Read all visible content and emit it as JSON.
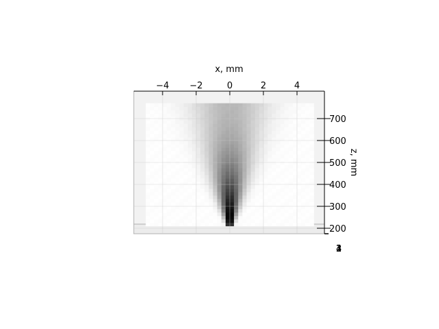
{
  "chart_data": {
    "type": "heatmap",
    "title": "",
    "xlabel": "x, mm",
    "zlabel": "z, mm",
    "x_ticks": [
      "−4",
      "−2",
      "0",
      "2",
      "4"
    ],
    "x_tick_values": [
      -4,
      -2,
      0,
      2,
      4
    ],
    "z_ticks": [
      "200",
      "300",
      "400",
      "500",
      "600",
      "700"
    ],
    "z_tick_values": [
      200,
      300,
      400,
      500,
      600,
      700
    ],
    "depth_tick_labels": [
      "4",
      "3",
      "2",
      "1"
    ],
    "xlim": [
      -4.2,
      4.9
    ],
    "zlim": [
      210,
      770
    ],
    "colormap": "gray_r",
    "description_values": {
      "x_extent_mm": [
        -5,
        5
      ],
      "z_extent_mm": [
        210,
        770
      ],
      "apex_x_mm": 0,
      "apex_z_mm": 210,
      "half_width_at_top_mm": 2.6
    },
    "grid": true,
    "colors": {
      "pane": "#f2f2f2",
      "pane_edge": "#b0b0b0",
      "gridline": "#c8c8c8",
      "axis": "#000000",
      "peak": "#000000"
    }
  }
}
